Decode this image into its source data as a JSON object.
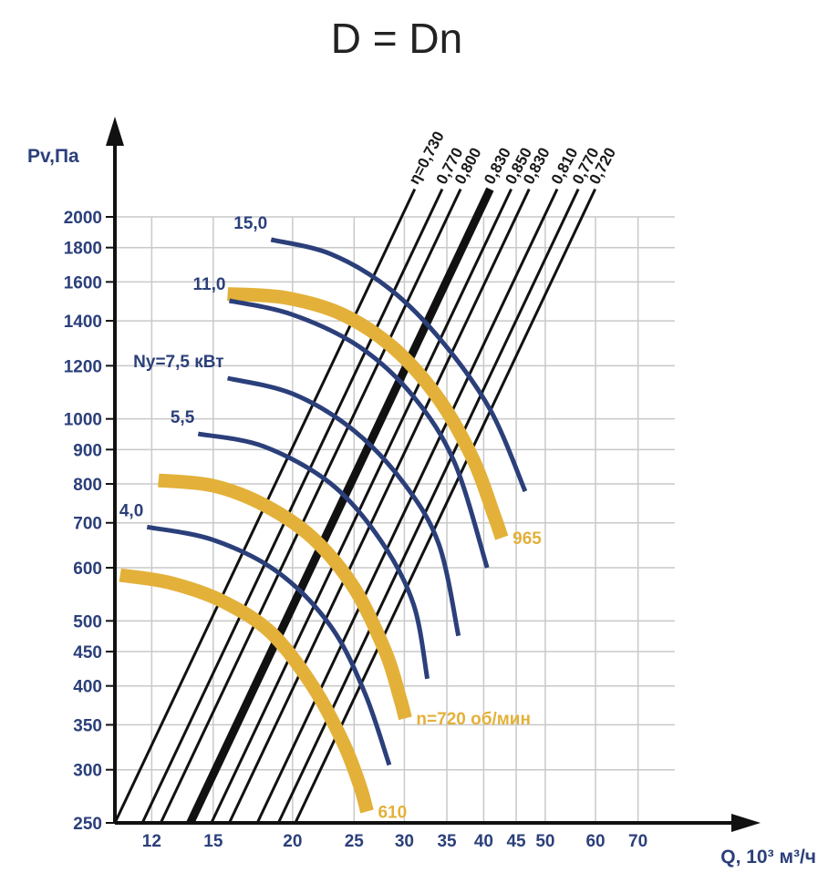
{
  "chart_data": {
    "type": "line",
    "title": "D = Dn",
    "ylabel": "Pv,Па",
    "xlabel": "Q, 10³ м³/ч",
    "x_scale": "log",
    "y_scale": "log",
    "xlim": [
      10.5,
      80
    ],
    "ylim": [
      250,
      2000
    ],
    "x_ticks": [
      12,
      15,
      20,
      25,
      30,
      35,
      40,
      45,
      50,
      60,
      70
    ],
    "x_tick_labels": [
      "12",
      "15",
      "20",
      "25",
      "30",
      "35",
      "40",
      "45",
      "50",
      "60",
      "70"
    ],
    "y_ticks": [
      250,
      300,
      350,
      400,
      450,
      500,
      600,
      700,
      800,
      900,
      1000,
      1200,
      1400,
      1600,
      1800,
      2000
    ],
    "y_tick_labels": [
      "250",
      "300",
      "350",
      "400",
      "450",
      "500",
      "600",
      "700",
      "800",
      "900",
      "1000",
      "1200",
      "1400",
      "1600",
      "1800",
      "2000"
    ],
    "efficiency_lines": [
      {
        "label": "η=0,730",
        "q_at_250": 10.5
      },
      {
        "label": "0,770",
        "q_at_250": 11.6
      },
      {
        "label": "0,800",
        "q_at_250": 12.4
      },
      {
        "label": "0,830",
        "q_at_250": 13.8,
        "bold": true
      },
      {
        "label": "0,850",
        "q_at_250": 14.9
      },
      {
        "label": "0,830",
        "q_at_250": 15.9
      },
      {
        "label": "0,810",
        "q_at_250": 17.6
      },
      {
        "label": "0,770",
        "q_at_250": 19.0
      },
      {
        "label": "0,720",
        "q_at_250": 20.2
      }
    ],
    "speed_curves": [
      {
        "label": "610",
        "points": [
          [
            10.7,
            585
          ],
          [
            12.8,
            570
          ],
          [
            15.5,
            535
          ],
          [
            18.5,
            480
          ],
          [
            21.5,
            400
          ],
          [
            24,
            330
          ],
          [
            25.5,
            285
          ],
          [
            26.2,
            260
          ]
        ]
      },
      {
        "label": "n=720 об/мин",
        "points": [
          [
            12.3,
            810
          ],
          [
            15,
            795
          ],
          [
            18,
            745
          ],
          [
            21.5,
            665
          ],
          [
            25,
            560
          ],
          [
            28,
            450
          ],
          [
            29.5,
            385
          ],
          [
            30.1,
            358
          ]
        ]
      },
      {
        "label": "965",
        "points": [
          [
            15.8,
            1535
          ],
          [
            19.5,
            1515
          ],
          [
            24,
            1430
          ],
          [
            29,
            1270
          ],
          [
            34,
            1070
          ],
          [
            38.5,
            870
          ],
          [
            41.5,
            720
          ],
          [
            42.7,
            665
          ]
        ]
      }
    ],
    "power_curves": [
      {
        "label": "4,0",
        "points": [
          [
            11.8,
            690
          ],
          [
            15,
            660
          ],
          [
            19,
            590
          ],
          [
            23,
            490
          ],
          [
            26,
            390
          ],
          [
            28.4,
            305
          ]
        ]
      },
      {
        "label": "5,5",
        "points": [
          [
            14.2,
            950
          ],
          [
            18,
            910
          ],
          [
            23,
            800
          ],
          [
            27.5,
            660
          ],
          [
            31,
            530
          ],
          [
            32.6,
            410
          ]
        ]
      },
      {
        "label": "Ny=7,5 кВт",
        "points": [
          [
            15.8,
            1150
          ],
          [
            20,
            1090
          ],
          [
            25,
            960
          ],
          [
            30,
            800
          ],
          [
            34,
            650
          ],
          [
            36.5,
            475
          ]
        ]
      },
      {
        "label": "11,0",
        "points": [
          [
            15.9,
            1500
          ],
          [
            20,
            1430
          ],
          [
            25.5,
            1280
          ],
          [
            31,
            1080
          ],
          [
            36,
            860
          ],
          [
            40.5,
            600
          ]
        ]
      },
      {
        "label": "15,0",
        "points": [
          [
            18.5,
            1850
          ],
          [
            23,
            1760
          ],
          [
            28.5,
            1560
          ],
          [
            34.5,
            1300
          ],
          [
            41,
            1030
          ],
          [
            46.5,
            780
          ]
        ]
      }
    ]
  },
  "colors": {
    "power_curve": "#2b3f7a",
    "speed_curve": "#e3b13a",
    "axis_text": "#2b3f7a",
    "grid": "#c9c9c9",
    "efficiency_line": "#111111"
  }
}
